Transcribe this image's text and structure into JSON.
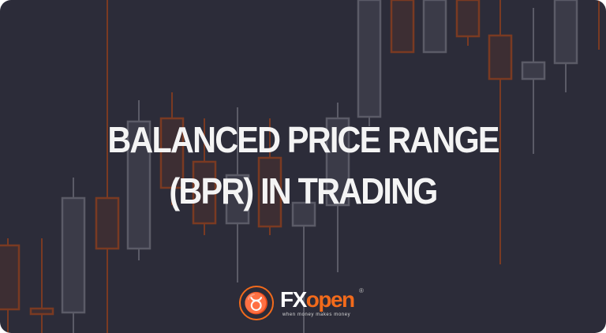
{
  "title": {
    "line1": "BALANCED PRICE RANGE",
    "line2": "(BPR) IN TRADING"
  },
  "logo": {
    "brand_part1": "FX",
    "brand_part2": "open",
    "registered": "®",
    "tagline": "when money makes money",
    "icon": "bull-head-icon"
  },
  "colors": {
    "background": "#2c2c39",
    "accent": "#f26a1b",
    "bearish_candle": "#7a3a22",
    "bullish_candle": "#5b5b67",
    "title": "#f4f4f4"
  }
}
